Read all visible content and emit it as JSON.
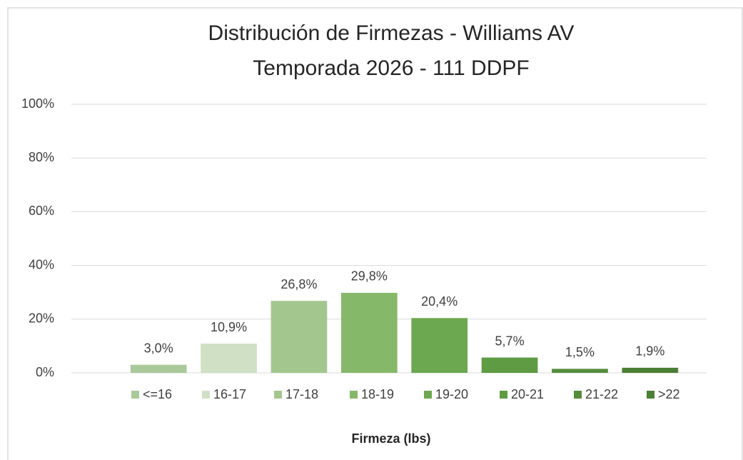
{
  "chart_data": {
    "type": "bar",
    "title": "Distribución de Firmezas - Williams AV",
    "subtitle": "Temporada  2026 - 111 DDPF",
    "x_label": "Firmeza (lbs)",
    "categories": [
      "<=16",
      "16-17",
      "17-18",
      "18-19",
      "19-20",
      "20-21",
      "21-22",
      ">22"
    ],
    "values": [
      3.0,
      10.9,
      26.8,
      29.8,
      20.4,
      5.7,
      1.5,
      1.9
    ],
    "value_labels": [
      "3,0%",
      "10,9%",
      "26,8%",
      "29,8%",
      "20,4%",
      "5,7%",
      "1,5%",
      "1,9%"
    ],
    "colors": [
      "#a9c99a",
      "#cfe0c4",
      "#a3c68f",
      "#86b86a",
      "#6ca84f",
      "#5e9b43",
      "#558d3b",
      "#4b7f34"
    ],
    "ylim": [
      0,
      100
    ],
    "yticks": [
      {
        "value": 0,
        "label": "0%"
      },
      {
        "value": 20,
        "label": "20%"
      },
      {
        "value": 40,
        "label": "40%"
      },
      {
        "value": 60,
        "label": "60%"
      },
      {
        "value": 80,
        "label": "80%"
      },
      {
        "value": 100,
        "label": "100%"
      }
    ],
    "grid": true,
    "legend": "bottom"
  }
}
